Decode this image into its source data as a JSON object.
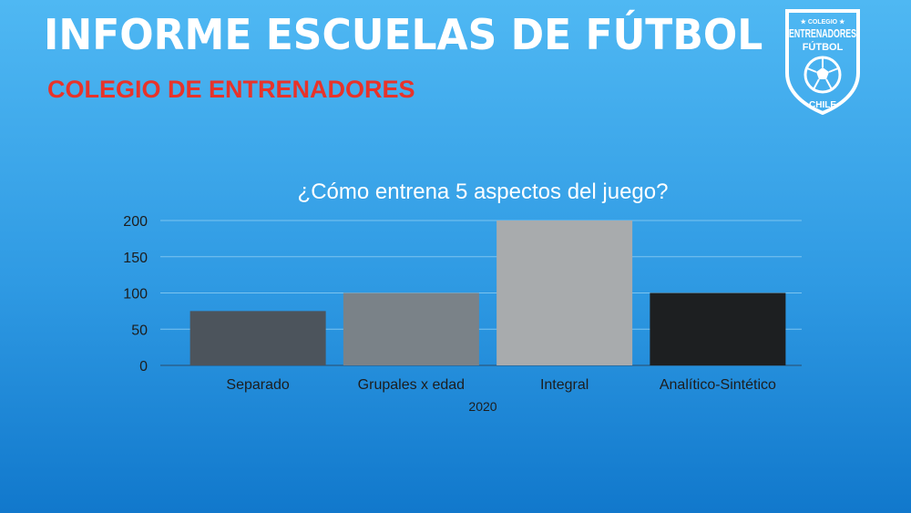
{
  "header": {
    "title": "INFORME ESCUELAS DE FÚTBOL",
    "subtitle": "COLEGIO DE ENTRENADORES"
  },
  "logo": {
    "top_text": "★ COLEGIO ★",
    "line1": "ENTRENADORES",
    "line2": "FÚTBOL",
    "bottom_text": "CHILE"
  },
  "colors": {
    "title": "#ffffff",
    "subtitle": "#e8332a",
    "gridline": "#7cc4ef"
  },
  "chart_data": {
    "type": "bar",
    "title": "¿Cómo entrena 5 aspectos del juego?",
    "categories": [
      "Separado",
      "Grupales x edad",
      "Integral",
      "Analítico-Sintético"
    ],
    "series": [
      {
        "name": "2020",
        "values": [
          75,
          100,
          200,
          100
        ]
      }
    ],
    "bar_colors": [
      "#4c545c",
      "#7a8288",
      "#a8abad",
      "#1d1f21"
    ],
    "ylim": [
      0,
      200
    ],
    "yticks": [
      0,
      50,
      100,
      150,
      200
    ],
    "grid": true,
    "xlabel": "",
    "ylabel": ""
  }
}
